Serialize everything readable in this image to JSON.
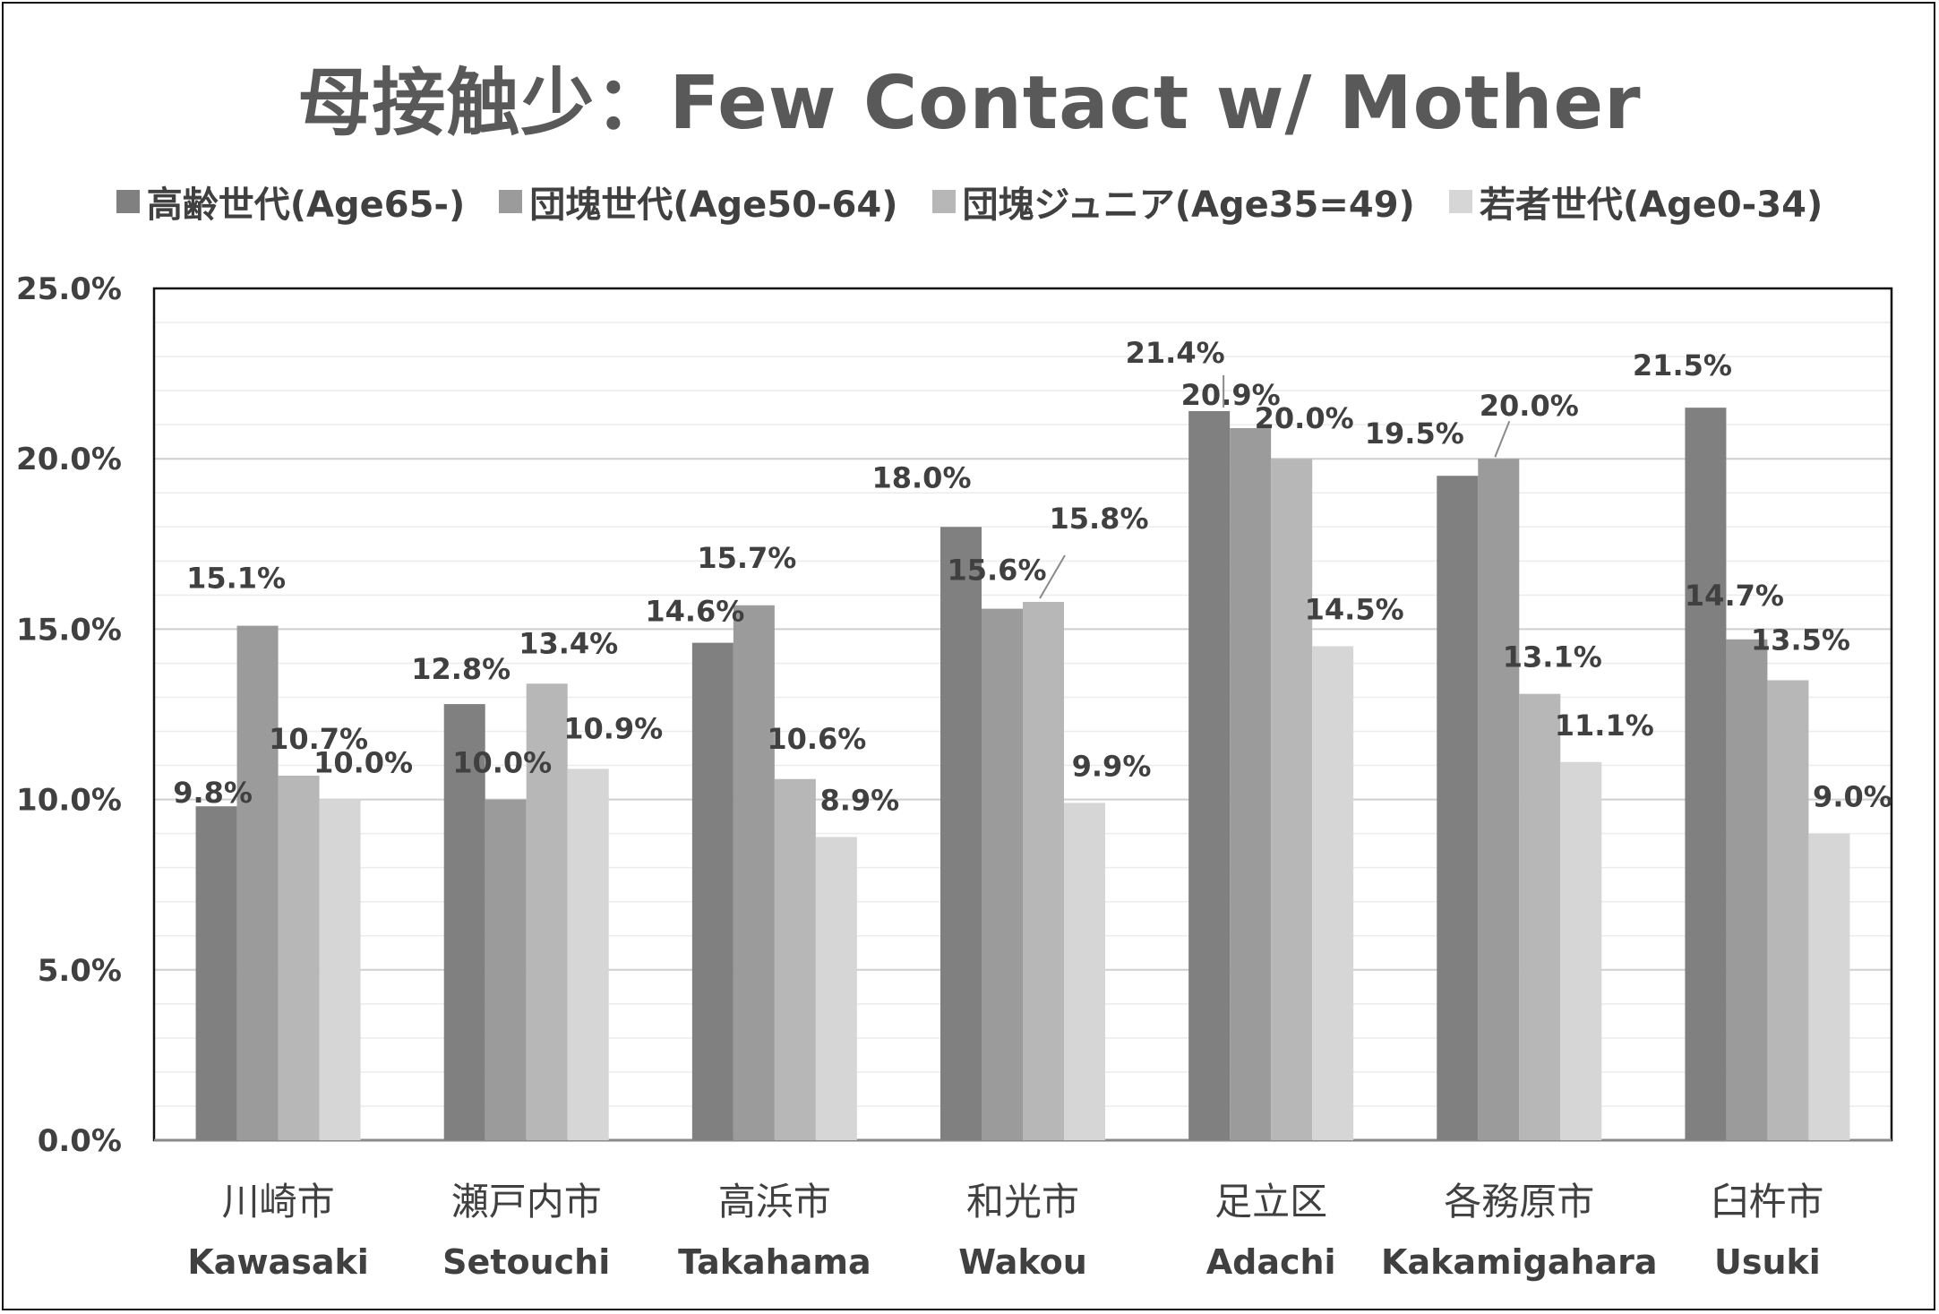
{
  "chart_data": {
    "type": "bar",
    "title": "母接触少：Few Contact w/ Mother",
    "categories": [
      {
        "ja": "川崎市",
        "en": "Kawasaki"
      },
      {
        "ja": "瀬戸内市",
        "en": "Setouchi"
      },
      {
        "ja": "高浜市",
        "en": "Takahama"
      },
      {
        "ja": "和光市",
        "en": "Wakou"
      },
      {
        "ja": "足立区",
        "en": "Adachi"
      },
      {
        "ja": "各務原市",
        "en": "Kakamigahara"
      },
      {
        "ja": "臼杵市",
        "en": "Usuki"
      }
    ],
    "series": [
      {
        "name": "高齢世代(Age65-)",
        "color": "#808080",
        "values": [
          9.8,
          12.8,
          14.6,
          18.0,
          21.4,
          19.5,
          21.5
        ]
      },
      {
        "name": "団塊世代(Age50-64)",
        "color": "#9b9b9b",
        "values": [
          15.1,
          10.0,
          15.7,
          15.6,
          20.9,
          20.0,
          14.7
        ]
      },
      {
        "name": "団塊ジュニア(Age35=49)",
        "color": "#b7b7b7",
        "values": [
          10.7,
          13.4,
          10.6,
          15.8,
          20.0,
          13.1,
          13.5
        ]
      },
      {
        "name": "若者世代(Age0-34)",
        "color": "#d6d6d6",
        "values": [
          10.0,
          10.9,
          8.9,
          9.9,
          14.5,
          11.1,
          9.0
        ]
      }
    ],
    "data_labels": [
      [
        "9.8%",
        "12.8%",
        "14.6%",
        "18.0%",
        "21.4%",
        "19.5%",
        "21.5%"
      ],
      [
        "15.1%",
        "10.0%",
        "15.7%",
        "15.6%",
        "20.9%",
        "20.0%",
        "14.7%"
      ],
      [
        "10.7%",
        "13.4%",
        "10.6%",
        "15.8%",
        "20.0%",
        "13.1%",
        "13.5%"
      ],
      [
        "10.0%",
        "10.9%",
        "8.9%",
        "9.9%",
        "14.5%",
        "11.1%",
        "9.0%"
      ]
    ],
    "yticks": [
      "0.0%",
      "5.0%",
      "10.0%",
      "15.0%",
      "20.0%",
      "25.0%"
    ],
    "ylim": [
      0,
      25
    ],
    "xlabel": "",
    "ylabel": "",
    "legend_position": "top",
    "grid": true
  }
}
